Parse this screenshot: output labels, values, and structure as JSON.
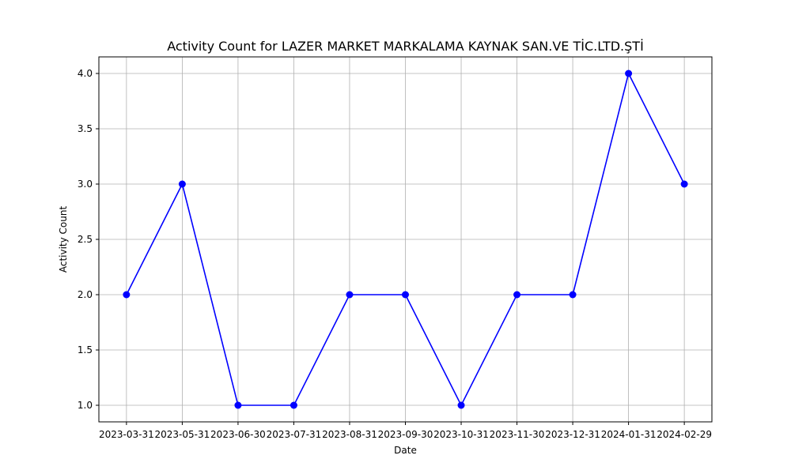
{
  "chart_data": {
    "type": "line",
    "title": "Activity Count for LAZER MARKET MARKALAMA KAYNAK SAN.VE TİC.LTD.ŞTİ",
    "xlabel": "Date",
    "ylabel": "Activity Count",
    "categories": [
      "2023-03-31",
      "2023-05-31",
      "2023-06-30",
      "2023-07-31",
      "2023-08-31",
      "2023-09-30",
      "2023-10-31",
      "2023-11-30",
      "2023-12-31",
      "2024-01-31",
      "2024-02-29"
    ],
    "series": [
      {
        "values": [
          2,
          3,
          1,
          1,
          2,
          2,
          1,
          2,
          2,
          4,
          3
        ],
        "color": "#0000ff",
        "marker": "circle"
      }
    ],
    "yticks": [
      "1.0",
      "1.5",
      "2.0",
      "2.5",
      "3.0",
      "3.5",
      "4.0"
    ],
    "ylim": [
      0.85,
      4.15
    ],
    "grid": true,
    "colors": {
      "grid": "#b0b0b0",
      "axes": "#000000",
      "line": "#0000ff"
    }
  }
}
